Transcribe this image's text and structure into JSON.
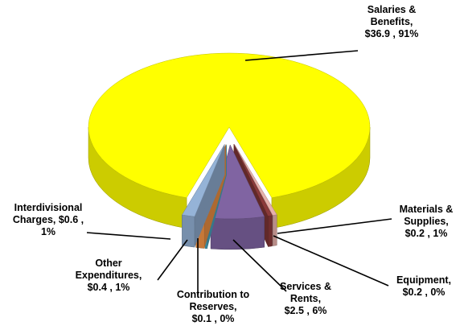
{
  "chart_data": {
    "type": "pie",
    "values": [
      36.9,
      0.2,
      0.2,
      2.5,
      0.1,
      0.4,
      0.6
    ],
    "value_labels": [
      [
        "Salaries &",
        "Benefits,",
        "$36.9 , 91%"
      ],
      [
        "Materials &",
        "Supplies,",
        "$0.2 , 1%"
      ],
      [
        "Equipment,",
        "$0.2 , 0%"
      ],
      [
        "Services &",
        "Rents,",
        "$2.5 , 6%"
      ],
      [
        "Contribution to",
        "Reserves,",
        "$0.1 , 0%"
      ],
      [
        "Other",
        "Expenditures,",
        "$0.4 , 1%"
      ],
      [
        "Interdivisional",
        "Charges, $0.6 ,",
        "1%"
      ]
    ],
    "colors": [
      "#ffff00",
      "#e6b0aa",
      "#8b3a3a",
      "#8064a2",
      "#4bacc6",
      "#f79646",
      "#95b3d7"
    ]
  }
}
